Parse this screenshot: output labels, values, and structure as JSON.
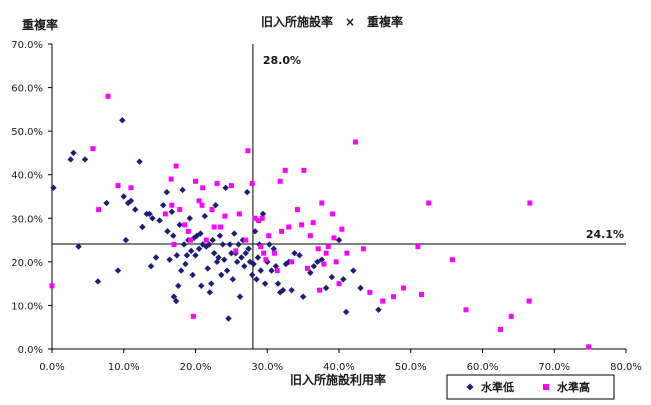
{
  "chart_data": {
    "type": "scatter",
    "title": "旧入所施設率　×　重複率",
    "xlabel": "旧入所施設利用率",
    "ylabel": "重複率",
    "xlim": [
      0,
      80
    ],
    "ylim": [
      0,
      70
    ],
    "x_ticks": [
      "0.0%",
      "10.0%",
      "20.0%",
      "30.0%",
      "40.0%",
      "50.0%",
      "60.0%",
      "70.0%",
      "80.0%"
    ],
    "y_ticks": [
      "0.0%",
      "10.0%",
      "20.0%",
      "30.0%",
      "40.0%",
      "50.0%",
      "60.0%",
      "70.0%"
    ],
    "reference_lines": {
      "vertical": {
        "x": 28.0,
        "label": "28.0%"
      },
      "horizontal": {
        "y": 24.1,
        "label": "24.1%"
      }
    },
    "series": [
      {
        "name": "水準低",
        "color": "#1b1f7a",
        "marker": "diamond",
        "points": [
          [
            0.2,
            37
          ],
          [
            2.6,
            43.5
          ],
          [
            3,
            45
          ],
          [
            3.7,
            23.5
          ],
          [
            4.6,
            43.5
          ],
          [
            6.4,
            15.5
          ],
          [
            7.6,
            33.5
          ],
          [
            9.2,
            18
          ],
          [
            9.8,
            52.5
          ],
          [
            10,
            35
          ],
          [
            10.3,
            25
          ],
          [
            10.6,
            33.5
          ],
          [
            11,
            34
          ],
          [
            11.6,
            32
          ],
          [
            12.2,
            43
          ],
          [
            12.6,
            28
          ],
          [
            13.2,
            31
          ],
          [
            13.6,
            31
          ],
          [
            13.8,
            19
          ],
          [
            14,
            30
          ],
          [
            14.5,
            21
          ],
          [
            15,
            29.5
          ],
          [
            15.5,
            33
          ],
          [
            16,
            36
          ],
          [
            16.1,
            27
          ],
          [
            16.4,
            20.5
          ],
          [
            16.7,
            31.5
          ],
          [
            16.9,
            26
          ],
          [
            17,
            12
          ],
          [
            17.3,
            11
          ],
          [
            17.4,
            21.5
          ],
          [
            17.6,
            14.5
          ],
          [
            17.8,
            28.5
          ],
          [
            18,
            18
          ],
          [
            18.2,
            36.5
          ],
          [
            18.4,
            24
          ],
          [
            18.6,
            19.5
          ],
          [
            18.8,
            21.5
          ],
          [
            19,
            25
          ],
          [
            19.2,
            30
          ],
          [
            19.4,
            22.5
          ],
          [
            19.6,
            17
          ],
          [
            19.8,
            25.5
          ],
          [
            20,
            21.5
          ],
          [
            20.2,
            26
          ],
          [
            20.5,
            23
          ],
          [
            20.7,
            26.5
          ],
          [
            20.8,
            14.5
          ],
          [
            21,
            24
          ],
          [
            21.3,
            30.5
          ],
          [
            21.5,
            23.5
          ],
          [
            21.7,
            18.5
          ],
          [
            21.9,
            24
          ],
          [
            22,
            13
          ],
          [
            22.2,
            15
          ],
          [
            22.4,
            25
          ],
          [
            22.6,
            22
          ],
          [
            22.8,
            33
          ],
          [
            23,
            20
          ],
          [
            23.2,
            21
          ],
          [
            23.4,
            26
          ],
          [
            23.6,
            17
          ],
          [
            23.8,
            24
          ],
          [
            24,
            20.5
          ],
          [
            24.2,
            37
          ],
          [
            24.4,
            18
          ],
          [
            24.6,
            7
          ],
          [
            24.8,
            24
          ],
          [
            25,
            22
          ],
          [
            25.2,
            16
          ],
          [
            25.4,
            26.5
          ],
          [
            25.6,
            22
          ],
          [
            25.8,
            20
          ],
          [
            26,
            24
          ],
          [
            26.2,
            12
          ],
          [
            26.4,
            21
          ],
          [
            26.6,
            25
          ],
          [
            26.8,
            19
          ],
          [
            27,
            22
          ],
          [
            27.2,
            36
          ],
          [
            27.4,
            23
          ],
          [
            27.6,
            20
          ],
          [
            27.9,
            17
          ],
          [
            28.1,
            19.5
          ],
          [
            28.3,
            27
          ],
          [
            28.5,
            16
          ],
          [
            28.7,
            21
          ],
          [
            28.9,
            24
          ],
          [
            29.1,
            18
          ],
          [
            29.4,
            31
          ],
          [
            29.7,
            15
          ],
          [
            30,
            20
          ],
          [
            30.3,
            24
          ],
          [
            30.6,
            18
          ],
          [
            30.9,
            23
          ],
          [
            31.2,
            19
          ],
          [
            31.5,
            15
          ],
          [
            31.8,
            13
          ],
          [
            32.2,
            13.5
          ],
          [
            32.6,
            19.5
          ],
          [
            33,
            20
          ],
          [
            33.4,
            13.5
          ],
          [
            33.8,
            22
          ],
          [
            34.5,
            21.5
          ],
          [
            35,
            12
          ],
          [
            36,
            17.5
          ],
          [
            36.5,
            19
          ],
          [
            37,
            20
          ],
          [
            37.6,
            20.5
          ],
          [
            38.2,
            14
          ],
          [
            39,
            16.5
          ],
          [
            40,
            25
          ],
          [
            40.6,
            16
          ],
          [
            41,
            8.5
          ],
          [
            42,
            18
          ],
          [
            43,
            14
          ],
          [
            45.5,
            9
          ]
        ]
      },
      {
        "name": "水準高",
        "color": "#ff00ff",
        "marker": "square",
        "points": [
          [
            0,
            14.5
          ],
          [
            5.7,
            46
          ],
          [
            6.5,
            32
          ],
          [
            7.8,
            58
          ],
          [
            9.2,
            37.5
          ],
          [
            11,
            37
          ],
          [
            15.8,
            31
          ],
          [
            16.6,
            39
          ],
          [
            16.7,
            33
          ],
          [
            17,
            24
          ],
          [
            17.3,
            42
          ],
          [
            17.8,
            32
          ],
          [
            18.5,
            28.5
          ],
          [
            19,
            27
          ],
          [
            19.3,
            25
          ],
          [
            19.7,
            7.5
          ],
          [
            20,
            38.5
          ],
          [
            20.5,
            34
          ],
          [
            20.9,
            33
          ],
          [
            21,
            37
          ],
          [
            21.5,
            25
          ],
          [
            22.3,
            32
          ],
          [
            22.6,
            28
          ],
          [
            23,
            38
          ],
          [
            23.5,
            28
          ],
          [
            24.1,
            30.5
          ],
          [
            25,
            37.5
          ],
          [
            25.6,
            22.5
          ],
          [
            26.1,
            31
          ],
          [
            27,
            25
          ],
          [
            27.3,
            45.5
          ],
          [
            27.9,
            38
          ],
          [
            28.3,
            30
          ],
          [
            28.8,
            29.5
          ],
          [
            29.1,
            23.5
          ],
          [
            29.3,
            30
          ],
          [
            29.5,
            22
          ],
          [
            29.8,
            20.5
          ],
          [
            30.2,
            26
          ],
          [
            31,
            22
          ],
          [
            31.4,
            18
          ],
          [
            31.8,
            38.5
          ],
          [
            32,
            27
          ],
          [
            32.5,
            41
          ],
          [
            33,
            28
          ],
          [
            33.4,
            20
          ],
          [
            34.2,
            32
          ],
          [
            34.8,
            28.5
          ],
          [
            35.1,
            41
          ],
          [
            35.6,
            18.5
          ],
          [
            36,
            26
          ],
          [
            36.4,
            29
          ],
          [
            37.1,
            23
          ],
          [
            37.3,
            13.5
          ],
          [
            37.6,
            33.5
          ],
          [
            37.9,
            19.5
          ],
          [
            38.2,
            22
          ],
          [
            38.5,
            23.5
          ],
          [
            39.1,
            31
          ],
          [
            39.3,
            25.5
          ],
          [
            39.6,
            20
          ],
          [
            40,
            15
          ],
          [
            40.4,
            27.5
          ],
          [
            41.1,
            22
          ],
          [
            42.3,
            47.5
          ],
          [
            43.4,
            23
          ],
          [
            44.3,
            13
          ],
          [
            46.1,
            11
          ],
          [
            47.6,
            12
          ],
          [
            49,
            14
          ],
          [
            51,
            23.5
          ],
          [
            51.5,
            12.5
          ],
          [
            52.5,
            33.5
          ],
          [
            55.8,
            20.5
          ],
          [
            57.7,
            9
          ],
          [
            62.5,
            4.5
          ],
          [
            64,
            7.5
          ],
          [
            66.5,
            11
          ],
          [
            66.6,
            33.5
          ],
          [
            74.8,
            0.5
          ]
        ]
      }
    ]
  }
}
